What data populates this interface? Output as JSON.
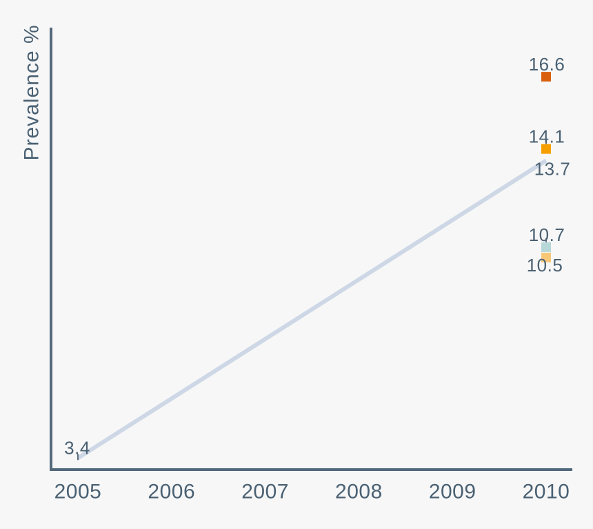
{
  "chart_data": {
    "type": "line",
    "title": "",
    "xlabel": "",
    "ylabel": "Prevalence %",
    "x_tick_labels": [
      "2005",
      "2006",
      "2007",
      "2008",
      "2009",
      "2010"
    ],
    "x_ticks": [
      2005,
      2006,
      2007,
      2008,
      2009,
      2010
    ],
    "xlim": [
      2004.7,
      2010.3
    ],
    "ylim": [
      3.0,
      18.3
    ],
    "grid": false,
    "legend": "none",
    "marker_shape": "square",
    "colors": {
      "background": "#f7f7f7",
      "axis": "#53697b",
      "text": "#4a6173",
      "stem": "#5f7080"
    },
    "series": [
      {
        "name": "trend-line-light-blue",
        "type": "line",
        "color": "#cdd7e6",
        "line_width": 6,
        "points": [
          {
            "x": 2005,
            "y": 3.4,
            "label": "3.4",
            "label_pos": "above-left",
            "stem": true
          },
          {
            "x": 2010,
            "y": 13.7,
            "label": "13.7",
            "label_pos": "below-right",
            "stem": false
          }
        ]
      },
      {
        "name": "marker-dark-orange",
        "type": "scatter",
        "color": "#d95f0e",
        "marker_size": 14,
        "points": [
          {
            "x": 2010,
            "y": 16.6,
            "label": "16.6",
            "label_pos": "above",
            "stem": false
          }
        ]
      },
      {
        "name": "marker-orange",
        "type": "scatter",
        "color": "#f5a000",
        "marker_size": 14,
        "points": [
          {
            "x": 2010,
            "y": 14.1,
            "label": "14.1",
            "label_pos": "above",
            "stem": true
          }
        ]
      },
      {
        "name": "marker-pale-teal",
        "type": "scatter",
        "color": "#b7d7d9",
        "marker_size": 14,
        "points": [
          {
            "x": 2010,
            "y": 10.7,
            "label": "10.7",
            "label_pos": "above",
            "stem": true
          }
        ]
      },
      {
        "name": "marker-pale-orange",
        "type": "scatter",
        "color": "#f8c878",
        "marker_size": 14,
        "points": [
          {
            "x": 2010,
            "y": 10.5,
            "label": "10.5",
            "label_pos": "below",
            "stem": false
          }
        ]
      }
    ]
  }
}
